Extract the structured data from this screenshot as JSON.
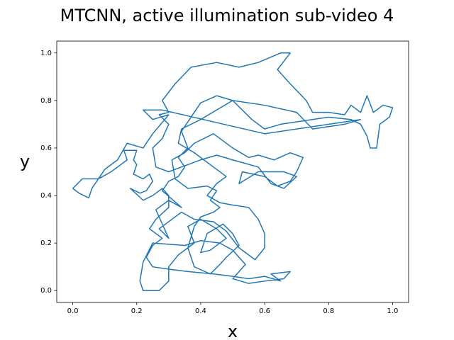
{
  "chart_data": {
    "type": "line",
    "title": "MTCNN, active illumination sub-video 4",
    "x_label": "x",
    "y_label": "y",
    "xlim": [
      -0.05,
      1.05
    ],
    "ylim": [
      -0.05,
      1.05
    ],
    "xticks": [
      {
        "value": 0,
        "label": "0.0"
      },
      0.2,
      0.4,
      0.6,
      0.8,
      {
        "value": 1,
        "label": "1.0"
      }
    ],
    "yticks": [
      {
        "value": 0,
        "label": "0.0"
      },
      0.2,
      0.4,
      0.6,
      0.8,
      {
        "value": 1,
        "label": "1.0"
      }
    ],
    "x": [
      0.0,
      0.03,
      0.08,
      0.12,
      0.15,
      0.17,
      0.16,
      0.2,
      0.19,
      0.2,
      0.19,
      0.22,
      0.24,
      0.25,
      0.23,
      0.21,
      0.18,
      0.22,
      0.25,
      0.28,
      0.3,
      0.3,
      0.26,
      0.24,
      0.28,
      0.25,
      0.23,
      0.25,
      0.3,
      0.36,
      0.44,
      0.5,
      0.55,
      0.6,
      0.65,
      0.62,
      0.68,
      0.66,
      0.6,
      0.55,
      0.5,
      0.54,
      0.5,
      0.46,
      0.4,
      0.35,
      0.25,
      0.22,
      0.21,
      0.22,
      0.27,
      0.3,
      0.3,
      0.33,
      0.38,
      0.36,
      0.4,
      0.45,
      0.48,
      0.43,
      0.4,
      0.42,
      0.47,
      0.5,
      0.52,
      0.48,
      0.46,
      0.43,
      0.38,
      0.36,
      0.38,
      0.4,
      0.44,
      0.46,
      0.43,
      0.45,
      0.42,
      0.36,
      0.32,
      0.31,
      0.35,
      0.38,
      0.44,
      0.5,
      0.55,
      0.58,
      0.63,
      0.68,
      0.72,
      0.7,
      0.68,
      0.64,
      0.6,
      0.53,
      0.52,
      0.58,
      0.66,
      0.7,
      0.66,
      0.62,
      0.58,
      0.5,
      0.45,
      0.4,
      0.36,
      0.3,
      0.26,
      0.25,
      0.28,
      0.3,
      0.27,
      0.3,
      0.28,
      0.32,
      0.37,
      0.45,
      0.52,
      0.58,
      0.65,
      0.68,
      0.64,
      0.68,
      0.73,
      0.75,
      0.8,
      0.85,
      0.87,
      0.9,
      0.92,
      0.94,
      0.97,
      1.0,
      0.99,
      0.96,
      0.95,
      0.93,
      0.92,
      0.9,
      0.87,
      0.8,
      0.7,
      0.65,
      0.6,
      0.56,
      0.5,
      0.45,
      0.4,
      0.34,
      0.33,
      0.38,
      0.44,
      0.48,
      0.45,
      0.42,
      0.46,
      0.5,
      0.55,
      0.58,
      0.6,
      0.6,
      0.57,
      0.52,
      0.48,
      0.44,
      0.38,
      0.34,
      0.3,
      0.27,
      0.3,
      0.26,
      0.3,
      0.34,
      0.28,
      0.3,
      0.33,
      0.35,
      0.33,
      0.36,
      0.34,
      0.37,
      0.4,
      0.45,
      0.5,
      0.6,
      0.7,
      0.75,
      0.85,
      0.9,
      0.6,
      0.28,
      0.22,
      0.25,
      0.3,
      0.25,
      0.22,
      0.17,
      0.14,
      0.1,
      0.06,
      0.05,
      0.02,
      0.0
    ],
    "series": [
      {
        "color": "#1f77b4",
        "values": [
          0.43,
          0.47,
          0.47,
          0.5,
          0.53,
          0.55,
          0.59,
          0.59,
          0.55,
          0.53,
          0.49,
          0.47,
          0.49,
          0.46,
          0.42,
          0.41,
          0.43,
          0.38,
          0.4,
          0.43,
          0.4,
          0.35,
          0.3,
          0.26,
          0.22,
          0.19,
          0.14,
          0.1,
          0.09,
          0.08,
          0.07,
          0.06,
          0.05,
          0.06,
          0.04,
          0.07,
          0.08,
          0.05,
          0.04,
          0.03,
          0.05,
          0.11,
          0.17,
          0.2,
          0.21,
          0.19,
          0.2,
          0.12,
          0.04,
          0.0,
          0.0,
          0.04,
          0.1,
          0.15,
          0.2,
          0.27,
          0.3,
          0.26,
          0.22,
          0.17,
          0.16,
          0.24,
          0.28,
          0.24,
          0.19,
          0.14,
          0.11,
          0.07,
          0.1,
          0.18,
          0.27,
          0.31,
          0.33,
          0.35,
          0.38,
          0.42,
          0.44,
          0.43,
          0.47,
          0.55,
          0.58,
          0.62,
          0.66,
          0.6,
          0.56,
          0.57,
          0.55,
          0.58,
          0.56,
          0.5,
          0.46,
          0.44,
          0.48,
          0.5,
          0.45,
          0.5,
          0.5,
          0.48,
          0.43,
          0.45,
          0.52,
          0.55,
          0.57,
          0.55,
          0.53,
          0.5,
          0.52,
          0.6,
          0.64,
          0.7,
          0.74,
          0.75,
          0.8,
          0.87,
          0.94,
          0.96,
          0.94,
          0.96,
          1.0,
          1.0,
          0.93,
          0.87,
          0.8,
          0.75,
          0.75,
          0.74,
          0.78,
          0.75,
          0.82,
          0.75,
          0.78,
          0.77,
          0.73,
          0.7,
          0.6,
          0.6,
          0.65,
          0.7,
          0.72,
          0.73,
          0.71,
          0.7,
          0.68,
          0.72,
          0.8,
          0.76,
          0.72,
          0.68,
          0.62,
          0.58,
          0.52,
          0.48,
          0.45,
          0.4,
          0.37,
          0.36,
          0.35,
          0.3,
          0.24,
          0.18,
          0.13,
          0.18,
          0.25,
          0.29,
          0.3,
          0.33,
          0.29,
          0.26,
          0.22,
          0.34,
          0.38,
          0.35,
          0.42,
          0.46,
          0.48,
          0.52,
          0.56,
          0.6,
          0.67,
          0.73,
          0.79,
          0.82,
          0.8,
          0.78,
          0.75,
          0.68,
          0.7,
          0.72,
          0.66,
          0.76,
          0.76,
          0.72,
          0.74,
          0.66,
          0.6,
          0.62,
          0.55,
          0.51,
          0.43,
          0.39,
          0.41,
          0.43
        ]
      }
    ]
  }
}
